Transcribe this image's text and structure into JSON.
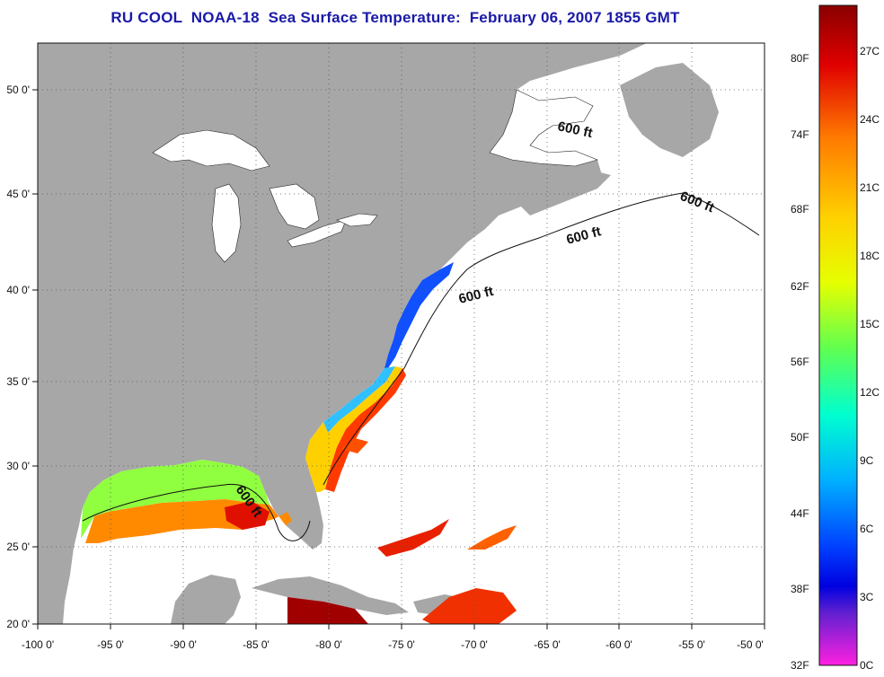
{
  "title": "RU COOL  NOAA-18  Sea Surface Temperature:  February 06, 2007 1855 GMT",
  "map": {
    "lon_labels": [
      "-100 0'",
      "-95 0'",
      "-90 0'",
      "-85 0'",
      "-80 0'",
      "-75 0'",
      "-70 0'",
      "-65 0'",
      "-60 0'",
      "-55 0'",
      "-50 0'"
    ],
    "lat_labels": [
      "50 0'",
      "45 0'",
      "40 0'",
      "35 0'",
      "30 0'",
      "25 0'",
      "20 0'"
    ],
    "depth_labels": [
      "600 ft",
      "600 ft",
      "600 ft",
      "600 ft",
      "600 ft"
    ],
    "colors": {
      "land": "#a7a7a7",
      "ocean_nodata": "#ffffff",
      "grid": "#555555"
    }
  },
  "colorbar": {
    "fahrenheit": [
      "80F",
      "74F",
      "68F",
      "62F",
      "56F",
      "50F",
      "44F",
      "38F",
      "32F"
    ],
    "celsius": [
      "27C",
      "24C",
      "21C",
      "18C",
      "15C",
      "12C",
      "9C",
      "6C",
      "3C",
      "0C"
    ],
    "range_celsius": [
      0,
      29
    ],
    "gradient_colors": [
      "#8a0000",
      "#e00000",
      "#ff7a00",
      "#ffd000",
      "#e6ff00",
      "#60ff50",
      "#00ffd0",
      "#00b0ff",
      "#0040ff",
      "#0000e0",
      "#6020d0",
      "#ff20e0"
    ]
  }
}
